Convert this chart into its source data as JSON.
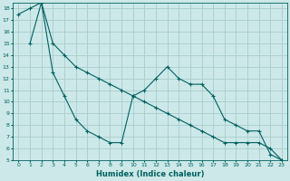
{
  "xlabel": "Humidex (Indice chaleur)",
  "xlim": [
    -0.5,
    23.5
  ],
  "ylim": [
    5,
    18.5
  ],
  "xticks": [
    0,
    1,
    2,
    3,
    4,
    5,
    6,
    7,
    8,
    9,
    10,
    11,
    12,
    13,
    14,
    15,
    16,
    17,
    18,
    19,
    20,
    21,
    22,
    23
  ],
  "yticks": [
    5,
    6,
    7,
    8,
    9,
    10,
    11,
    12,
    13,
    14,
    15,
    16,
    17,
    18
  ],
  "background_color": "#cce8e8",
  "grid_color": "#aacccc",
  "line_color": "#006060",
  "line1_x": [
    0,
    1,
    2,
    3,
    4,
    5,
    6,
    7,
    8,
    9,
    10,
    11,
    12,
    13,
    14,
    15,
    16,
    17,
    18,
    19,
    20,
    21,
    22,
    23
  ],
  "line1_y": [
    17.5,
    18.0,
    18.5,
    15.0,
    14.0,
    13.0,
    12.5,
    12.0,
    11.5,
    11.0,
    10.5,
    10.0,
    9.5,
    9.0,
    8.5,
    8.0,
    7.5,
    7.0,
    6.5,
    6.5,
    6.5,
    6.5,
    6.0,
    5.0
  ],
  "line2_x": [
    1,
    2,
    3,
    4,
    5,
    6,
    7,
    8,
    9,
    10,
    11,
    12,
    13,
    14,
    15,
    16,
    17,
    18,
    19,
    20,
    21,
    22,
    23
  ],
  "line2_y": [
    15.0,
    18.5,
    12.5,
    10.5,
    8.5,
    7.5,
    7.0,
    6.5,
    6.5,
    10.5,
    11.0,
    12.0,
    13.0,
    12.0,
    11.5,
    11.5,
    10.5,
    8.5,
    8.0,
    7.5,
    7.5,
    5.5,
    5.0
  ]
}
